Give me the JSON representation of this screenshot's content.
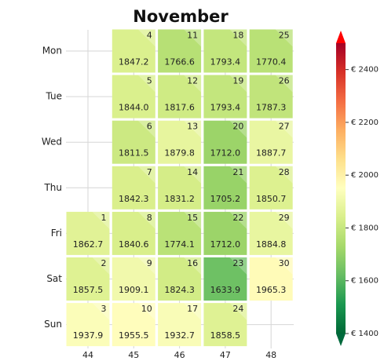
{
  "chart_data": {
    "type": "calendar_heatmap",
    "title": "November",
    "weekdays": [
      "Mon",
      "Tue",
      "Wed",
      "Thu",
      "Fri",
      "Sat",
      "Sun"
    ],
    "weeks": [
      44,
      45,
      46,
      47,
      48
    ],
    "days": [
      1,
      2,
      3,
      4,
      5,
      6,
      7,
      8,
      9,
      10,
      11,
      12,
      13,
      14,
      15,
      16,
      17,
      18,
      19,
      20,
      21,
      22,
      23,
      24,
      25,
      26,
      27,
      28,
      29,
      30
    ],
    "week": [
      44,
      44,
      44,
      45,
      45,
      45,
      45,
      45,
      45,
      45,
      46,
      46,
      46,
      46,
      46,
      46,
      46,
      47,
      47,
      47,
      47,
      47,
      47,
      47,
      48,
      48,
      48,
      48,
      48,
      48
    ],
    "weekday": [
      "Fri",
      "Sat",
      "Sun",
      "Mon",
      "Tue",
      "Wed",
      "Thu",
      "Fri",
      "Sat",
      "Sun",
      "Mon",
      "Tue",
      "Wed",
      "Thu",
      "Fri",
      "Sat",
      "Sun",
      "Mon",
      "Tue",
      "Wed",
      "Thu",
      "Fri",
      "Sat",
      "Sun",
      "Mon",
      "Tue",
      "Wed",
      "Thu",
      "Fri",
      "Sat"
    ],
    "values": [
      1862.7,
      1857.5,
      1937.9,
      1847.2,
      1844.0,
      1811.5,
      1842.3,
      1840.6,
      1909.1,
      1955.5,
      1766.6,
      1817.6,
      1879.8,
      1831.2,
      1774.1,
      1824.3,
      1932.7,
      1793.4,
      1793.4,
      1712.0,
      1705.2,
      1712.0,
      1633.9,
      1858.5,
      1770.4,
      1787.3,
      1887.7,
      1850.7,
      1884.8,
      1965.3
    ],
    "value_labels": [
      "1862.7",
      "1857.5",
      "1937.9",
      "1847.2",
      "1844.0",
      "1811.5",
      "1842.3",
      "1840.6",
      "1909.1",
      "1955.5",
      "1766.6",
      "1817.6",
      "1879.8",
      "1831.2",
      "1774.1",
      "1824.3",
      "1932.7",
      "1793.4",
      "1793.4",
      "1712.0",
      "1705.2",
      "1712.0",
      "1633.9",
      "1858.5",
      "1770.4",
      "1787.3",
      "1887.7",
      "1850.7",
      "1884.8",
      "1965.3"
    ],
    "colormap": [
      "#006837",
      "#1a9850",
      "#66bd63",
      "#a6d96a",
      "#d9ef8b",
      "#ffffbf",
      "#fee08b",
      "#fdae61",
      "#f46d43",
      "#d73027",
      "#a50026"
    ],
    "clim": [
      1400,
      2500
    ],
    "cticks": [
      {
        "value": 1400,
        "label": "€ 1400"
      },
      {
        "value": 1600,
        "label": "€ 1600"
      },
      {
        "value": 1800,
        "label": "€ 1800"
      },
      {
        "value": 2000,
        "label": "€ 2000"
      },
      {
        "value": 2200,
        "label": "€ 2200"
      },
      {
        "value": 2400,
        "label": "€ 2400"
      }
    ],
    "grid": true
  }
}
